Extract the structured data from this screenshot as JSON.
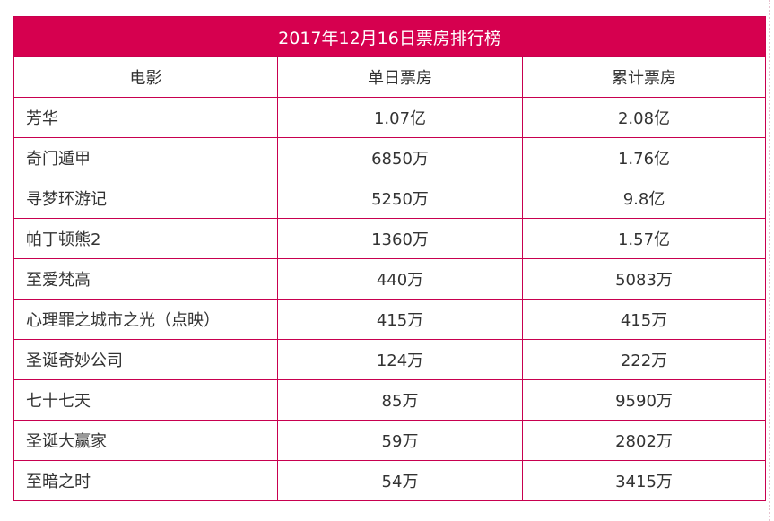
{
  "title": "2017年12月16日票房排行榜",
  "columns": [
    "电影",
    "单日票房",
    "累计票房"
  ],
  "rows": [
    {
      "movie": "芳华",
      "daily": "1.07亿",
      "total": "2.08亿"
    },
    {
      "movie": "奇门遁甲",
      "daily": "6850万",
      "total": "1.76亿"
    },
    {
      "movie": "寻梦环游记",
      "daily": "5250万",
      "total": "9.8亿"
    },
    {
      "movie": "帕丁顿熊2",
      "daily": "1360万",
      "total": "1.57亿"
    },
    {
      "movie": "至爱梵高",
      "daily": "440万",
      "total": "5083万"
    },
    {
      "movie": "心理罪之城市之光（点映）",
      "daily": "415万",
      "total": "415万"
    },
    {
      "movie": "圣诞奇妙公司",
      "daily": "124万",
      "total": "222万"
    },
    {
      "movie": "七十七天",
      "daily": "85万",
      "total": "9590万"
    },
    {
      "movie": "圣诞大赢家",
      "daily": "59万",
      "total": "2802万"
    },
    {
      "movie": "至暗之时",
      "daily": "54万",
      "total": "3415万"
    }
  ],
  "colors": {
    "header_bg": "#d6004f",
    "border": "#c8004f",
    "text": "#333333"
  }
}
